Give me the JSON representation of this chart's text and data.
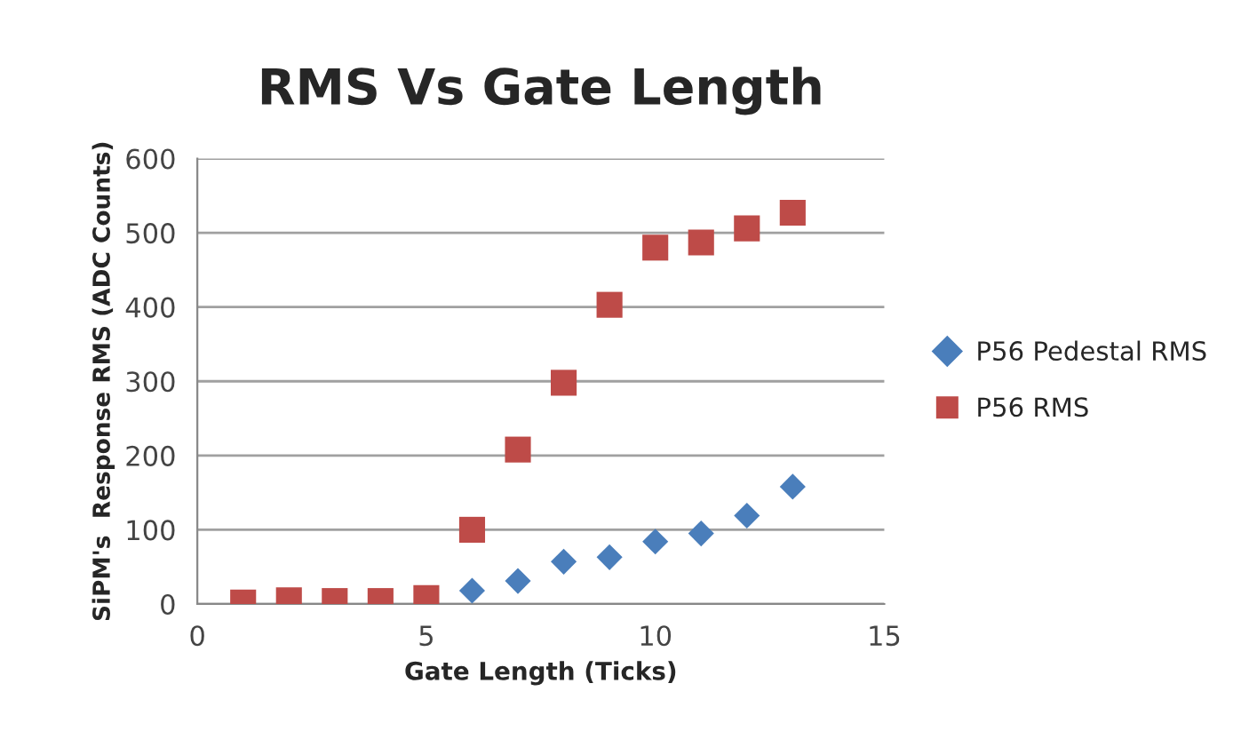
{
  "chart_data": {
    "type": "scatter",
    "title": "RMS Vs Gate Length",
    "xlabel": "Gate Length (Ticks)",
    "ylabel": "SiPM's  Response RMS (ADC Counts)",
    "x": [
      1,
      2,
      3,
      4,
      5,
      6,
      7,
      8,
      9,
      10,
      11,
      12,
      13
    ],
    "series": [
      {
        "name": "P56 Pedestal RMS",
        "color": "#4a7ebb",
        "marker": "diamond",
        "values": [
          null,
          null,
          null,
          null,
          null,
          18,
          31,
          57,
          63,
          84,
          95,
          119,
          158
        ]
      },
      {
        "name": "P56 RMS",
        "color": "#be4b48",
        "marker": "square",
        "values": [
          2,
          5,
          4,
          4,
          8,
          100,
          208,
          298,
          403,
          480,
          487,
          506,
          527
        ]
      }
    ],
    "xlim": [
      0,
      15
    ],
    "xticks": [
      0,
      5,
      10,
      15
    ],
    "ylim": [
      0,
      600
    ],
    "yticks": [
      0,
      100,
      200,
      300,
      400,
      500,
      600
    ],
    "grid": "y",
    "legend": "right"
  }
}
